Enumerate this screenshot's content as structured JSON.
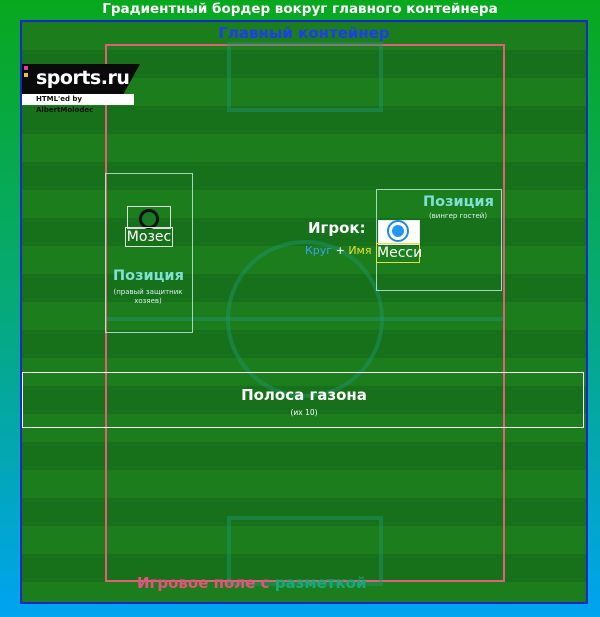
{
  "outer": {
    "title": "Градиентный бордер вокруг главного контейнера"
  },
  "main": {
    "title": "Главный контейнер"
  },
  "logo": {
    "brand": "sports.ru",
    "credit": "HTML'ed by AlbertMolodec"
  },
  "field": {
    "label_part1": "Игровое поле с ",
    "label_part2": "разметкой"
  },
  "positions": {
    "left": {
      "title": "Позиция",
      "note": "(правый защитник хозяев)"
    },
    "right": {
      "title": "Позиция",
      "note": "(вингер гостей)"
    }
  },
  "players": {
    "home": {
      "name": "Мозес"
    },
    "away": {
      "name": "Месси"
    }
  },
  "legend": {
    "title": "Игрок:",
    "circle": "Круг",
    "plus": " + ",
    "name": "Имя"
  },
  "stripe": {
    "title": "Полоса газона",
    "note": "(их 10)"
  },
  "colors": {
    "border_gradient_top": "#08a81e",
    "border_gradient_bottom": "#00a4f0",
    "main_container_border": "#1428c8",
    "field_border": "#e0607a",
    "position_title": "#7fe0d5",
    "home_circle": "#111111",
    "away_circle": "#2196f3"
  }
}
